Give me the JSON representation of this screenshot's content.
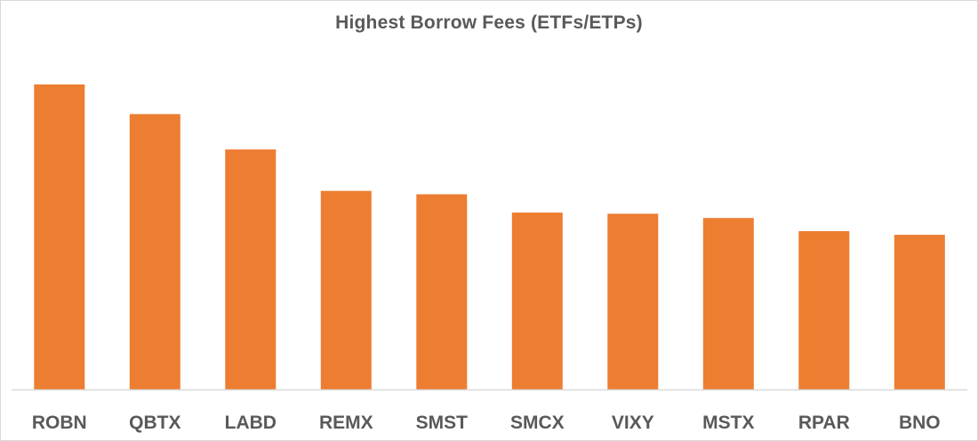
{
  "chart_data": {
    "type": "bar",
    "title": "Highest Borrow Fees (ETFs/ETPs)",
    "xlabel": "",
    "ylabel": "",
    "categories": [
      "ROBN",
      "QBTX",
      "LABD",
      "REMX",
      "SMST",
      "SMCX",
      "VIXY",
      "MSTX",
      "RPAR",
      "BNO"
    ],
    "values": [
      100,
      90.3,
      78.7,
      65.1,
      64.0,
      58.0,
      57.6,
      56.2,
      51.9,
      50.7
    ],
    "ylim": [
      0,
      100
    ],
    "y_axis_visible": false,
    "grid": false,
    "legend": "none",
    "bar_color": "#ED7D31",
    "axis_color": "#D9D9D9",
    "text_color": "#595959"
  }
}
